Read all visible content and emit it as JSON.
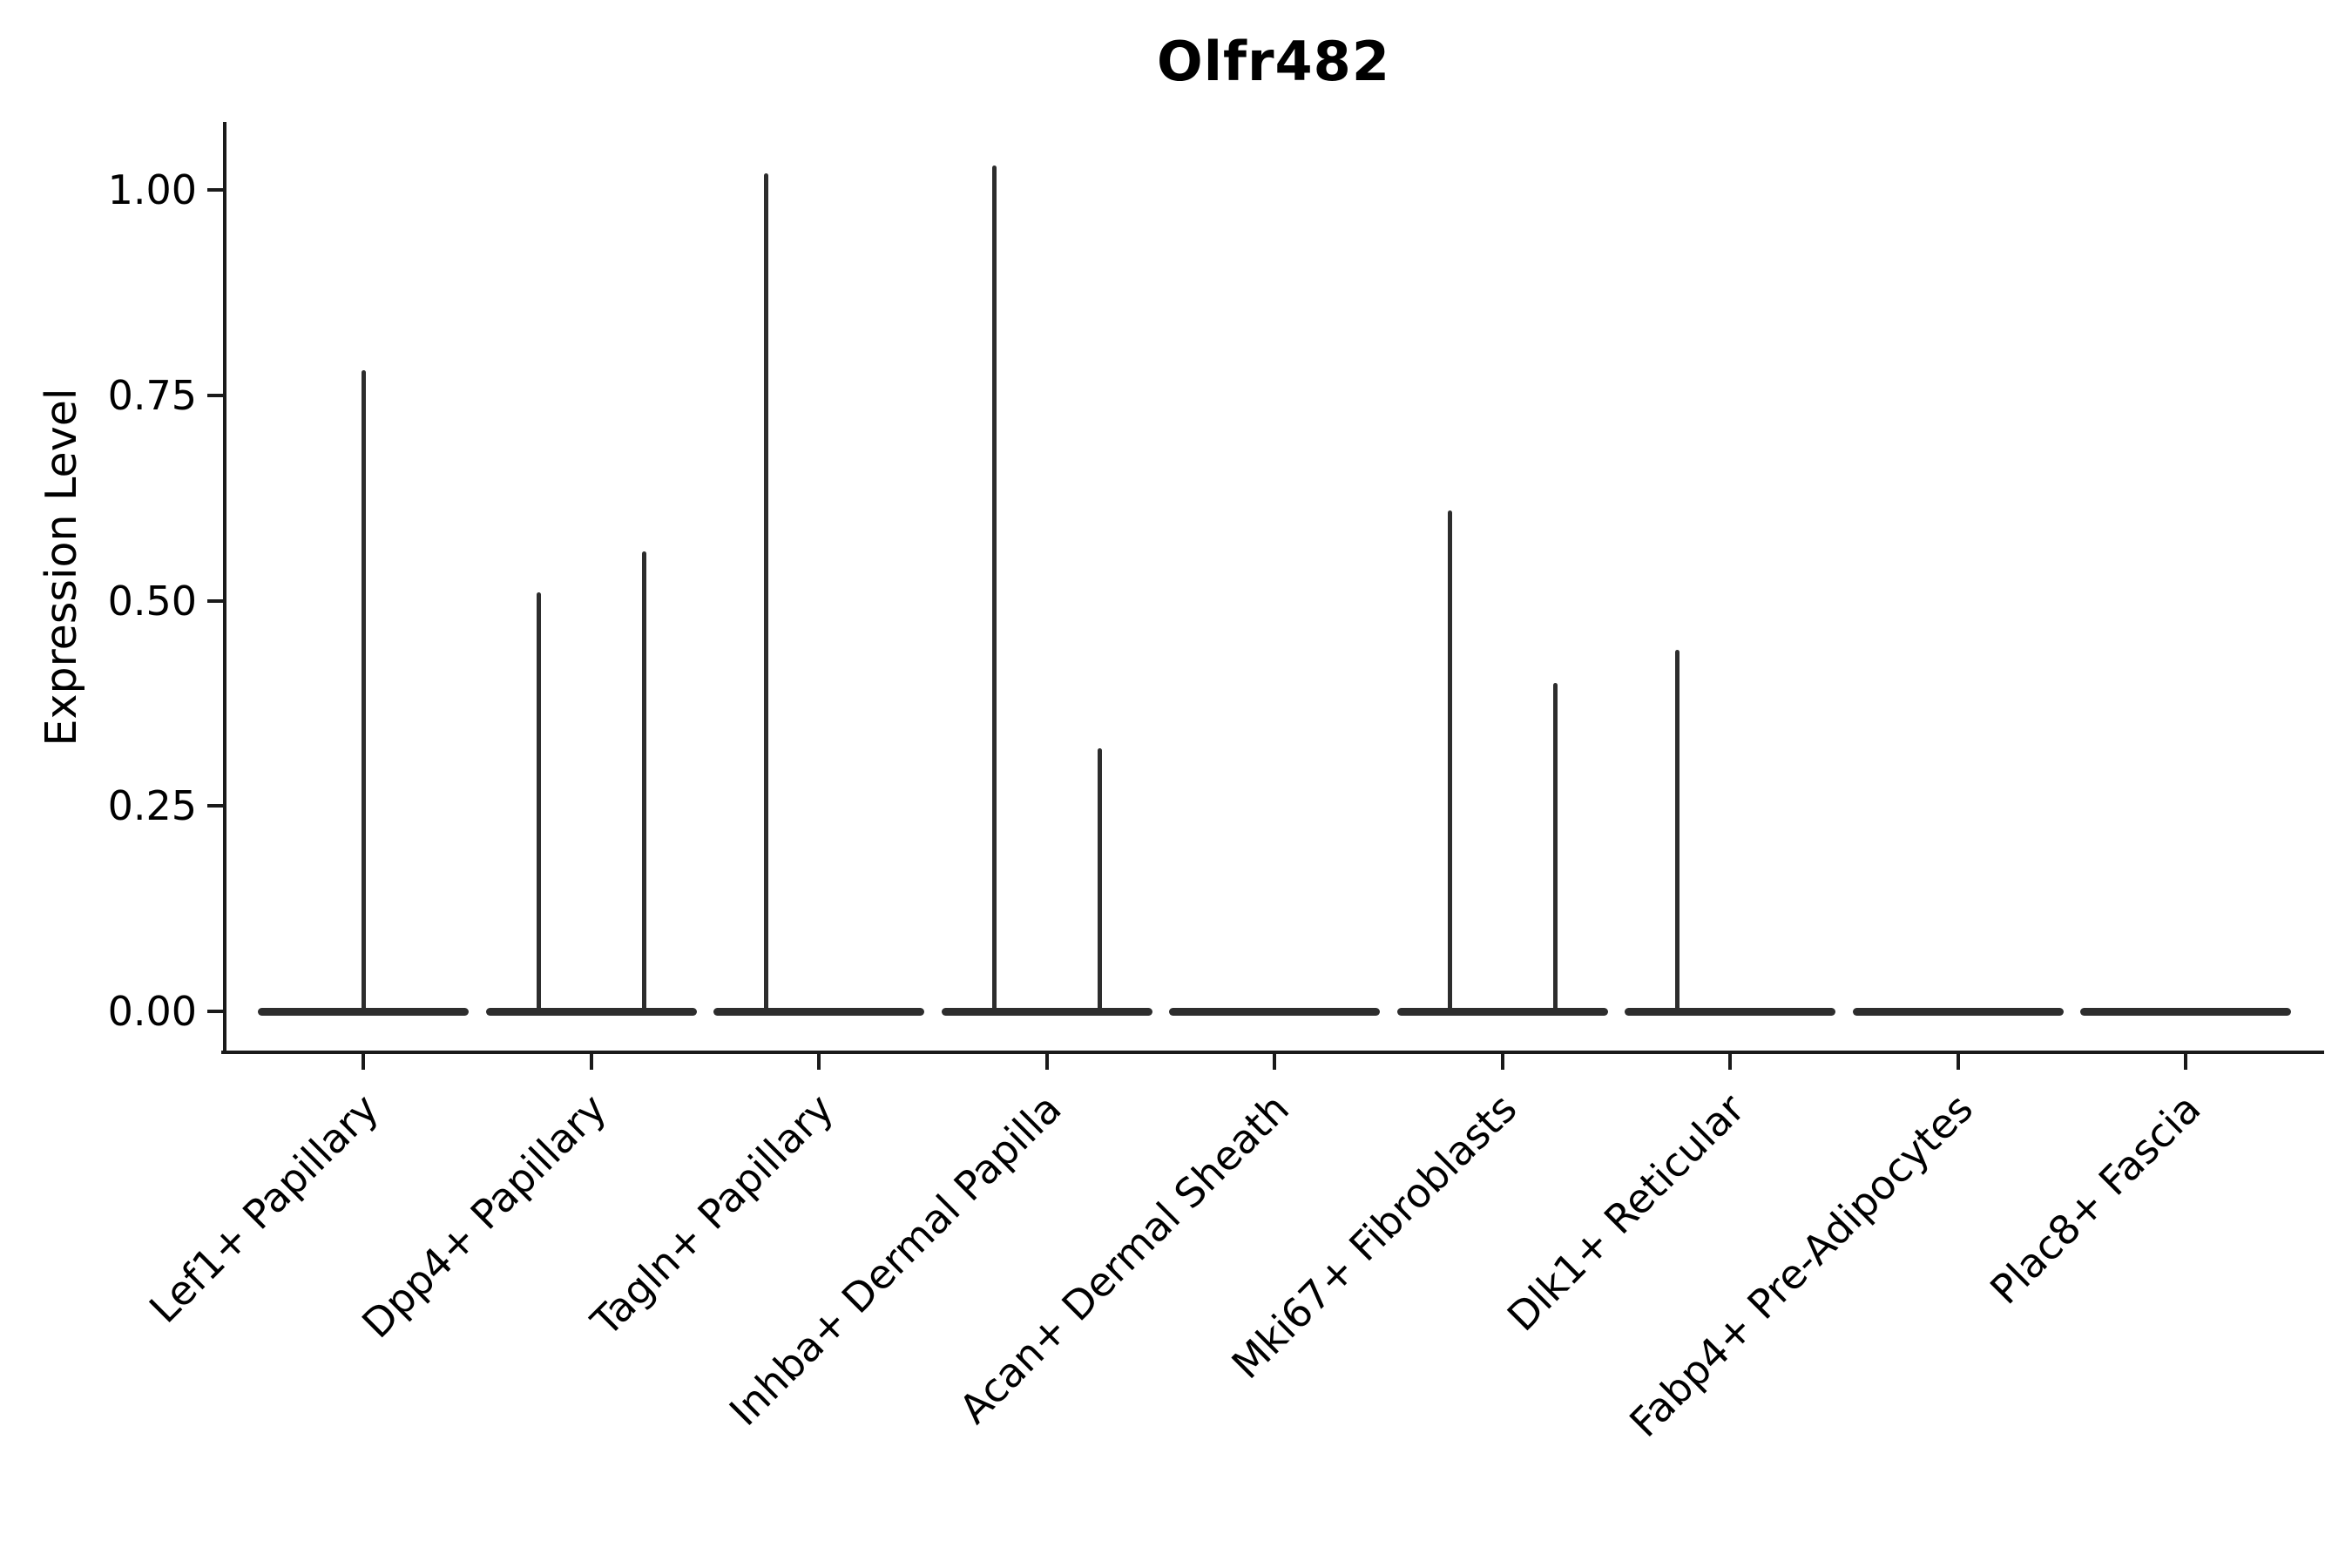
{
  "chart_data": {
    "type": "violin",
    "title": "Olfr482",
    "ylabel": "Expression Level",
    "xlabel": "",
    "grid": false,
    "legend": "none",
    "ylim": [
      0,
      1.07
    ],
    "ytick_values": [
      1.0,
      0.75,
      0.5,
      0.25,
      0.0
    ],
    "ytick_labels": [
      "1.00",
      "0.75",
      "0.50",
      "0.25",
      "0.00"
    ],
    "categories": [
      "Lef1+ Papillary",
      "Dpp4+ Papillary",
      "Tagln+ Papillary",
      "Inhba+ Dermal Papilla",
      "Acan+ Dermal Sheath",
      "Mki67+ Fibroblasts",
      "Dlk1+ Reticular",
      "Fabp4+ Pre-Adipocytes",
      "Plac8+ Fascia"
    ],
    "violins": [
      {
        "category": "Lef1+ Papillary",
        "base_value": 0.0,
        "spikes": [
          {
            "side": "center",
            "offset": 0.0,
            "max": 0.78
          }
        ]
      },
      {
        "category": "Dpp4+ Papillary",
        "base_value": 0.0,
        "spikes": [
          {
            "side": "left",
            "offset": -0.25,
            "max": 0.51
          },
          {
            "side": "right",
            "offset": 0.25,
            "max": 0.56
          }
        ]
      },
      {
        "category": "Tagln+ Papillary",
        "base_value": 0.0,
        "spikes": [
          {
            "side": "left",
            "offset": -0.25,
            "max": 1.02
          }
        ]
      },
      {
        "category": "Inhba+ Dermal Papilla",
        "base_value": 0.0,
        "spikes": [
          {
            "side": "left",
            "offset": -0.25,
            "max": 1.03
          },
          {
            "side": "right",
            "offset": 0.25,
            "max": 0.32
          }
        ]
      },
      {
        "category": "Acan+ Dermal Sheath",
        "base_value": 0.0,
        "spikes": []
      },
      {
        "category": "Mki67+ Fibroblasts",
        "base_value": 0.0,
        "spikes": [
          {
            "side": "left",
            "offset": -0.25,
            "max": 0.61
          },
          {
            "side": "right",
            "offset": 0.25,
            "max": 0.4
          }
        ]
      },
      {
        "category": "Dlk1+ Reticular",
        "base_value": 0.0,
        "spikes": [
          {
            "side": "left",
            "offset": -0.25,
            "max": 0.44
          }
        ]
      },
      {
        "category": "Fabp4+ Pre-Adipocytes",
        "base_value": 0.0,
        "spikes": []
      },
      {
        "category": "Plac8+ Fascia",
        "base_value": 0.0,
        "spikes": []
      }
    ],
    "colors": {
      "violin": "#2d2d2d",
      "axis": "#1a1a1a",
      "text": "#000000",
      "background": "#ffffff"
    }
  }
}
